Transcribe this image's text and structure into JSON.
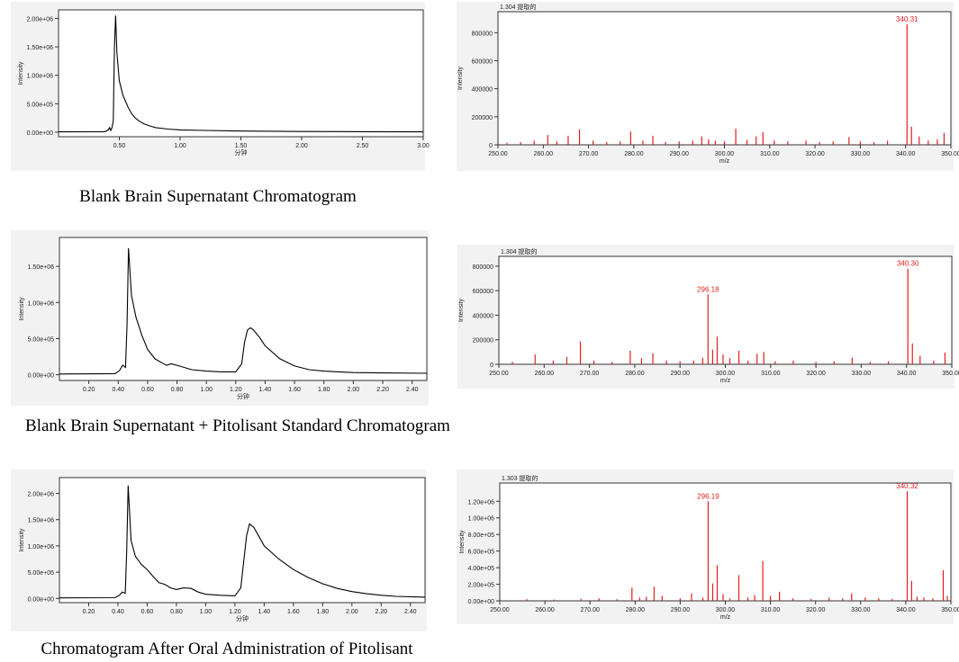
{
  "chart_data": [
    {
      "id": "chrom1",
      "type": "line",
      "title": "Blank Brain Supernatant Chromatogram",
      "xlabel": "分钟",
      "ylabel": "Intensity",
      "xlim": [
        0,
        3.0
      ],
      "ylim": [
        -80000,
        2150000
      ],
      "xticks": [
        0.5,
        1.0,
        1.5,
        2.0,
        2.5,
        3.0
      ],
      "xtick_labels": [
        "0.50",
        "1.00",
        "1.50",
        "2.00",
        "2.50",
        "3.00"
      ],
      "yticks": [
        0,
        500000,
        1000000,
        1500000,
        2000000
      ],
      "ytick_labels": [
        "0.00e+00",
        "5.00e+05",
        "1.00e+06",
        "1.50e+06",
        "2.00e+06"
      ],
      "grid": false,
      "color": "#000000",
      "x": [
        0,
        0.38,
        0.41,
        0.42,
        0.43,
        0.44,
        0.45,
        0.46,
        0.47,
        0.48,
        0.5,
        0.53,
        0.57,
        0.6,
        0.63,
        0.66,
        0.7,
        0.75,
        0.8,
        0.9,
        1.0,
        1.2,
        1.5,
        2.0,
        2.5,
        3.0
      ],
      "y": [
        5000,
        8000,
        40000,
        80000,
        30000,
        80000,
        200000,
        1500000,
        2050000,
        1400000,
        900000,
        650000,
        450000,
        330000,
        250000,
        200000,
        150000,
        110000,
        80000,
        55000,
        40000,
        30000,
        20000,
        12000,
        8000,
        5000
      ]
    },
    {
      "id": "ms1",
      "type": "bar",
      "header": "1.304 提取的",
      "xlabel": "m/z",
      "ylabel": "Intensity",
      "xlim": [
        250,
        350
      ],
      "ylim": [
        0,
        950000
      ],
      "xticks": [
        250,
        260,
        270,
        280,
        290,
        300,
        310,
        320,
        330,
        340,
        350
      ],
      "xtick_labels": [
        "250.00",
        "260.00",
        "270.00",
        "280.00",
        "290.00",
        "300.00",
        "310.00",
        "320.00",
        "330.00",
        "340.00",
        "350.00"
      ],
      "yticks": [
        0,
        200000,
        400000,
        600000,
        800000
      ],
      "ytick_labels": [
        "0",
        "200000",
        "400000",
        "600000",
        "800000"
      ],
      "color": "#e02020",
      "annotations": [
        {
          "x": 340.31,
          "label": "340.31"
        }
      ],
      "x": [
        252,
        255,
        258,
        261,
        263,
        265.5,
        268,
        271,
        274,
        277,
        279.3,
        282,
        284.2,
        287,
        290,
        293,
        295,
        296.5,
        298,
        300,
        302.5,
        305,
        307,
        308.5,
        311,
        314,
        318,
        321,
        324,
        327.5,
        330,
        333,
        336,
        340.31,
        341.3,
        343,
        345,
        347,
        348.5
      ],
      "y": [
        15000,
        20000,
        30000,
        70000,
        25000,
        65000,
        110000,
        30000,
        20000,
        25000,
        95000,
        30000,
        65000,
        20000,
        25000,
        30000,
        60000,
        40000,
        30000,
        25000,
        115000,
        35000,
        60000,
        90000,
        30000,
        25000,
        30000,
        20000,
        25000,
        55000,
        25000,
        20000,
        30000,
        860000,
        130000,
        60000,
        30000,
        40000,
        85000
      ]
    },
    {
      "id": "chrom2",
      "type": "line",
      "title": "Blank Brain Supernatant + Pitolisant Standard Chromatogram",
      "xlabel": "分钟",
      "ylabel": "Intensity",
      "xlim": [
        0,
        2.5
      ],
      "ylim": [
        -80000,
        1900000
      ],
      "xticks": [
        0.2,
        0.4,
        0.6,
        0.8,
        1.0,
        1.2,
        1.4,
        1.6,
        1.8,
        2.0,
        2.2,
        2.4
      ],
      "xtick_labels": [
        "0.20",
        "0.40",
        "0.60",
        "0.80",
        "1.00",
        "1.20",
        "1.40",
        "1.60",
        "1.80",
        "2.00",
        "2.20",
        "2.40"
      ],
      "yticks": [
        0,
        500000,
        1000000,
        1500000
      ],
      "ytick_labels": [
        "0.00e+00",
        "5.00e+05",
        "1.00e+06",
        "1.50e+06"
      ],
      "grid": false,
      "color": "#000000",
      "x": [
        0,
        0.38,
        0.41,
        0.43,
        0.45,
        0.46,
        0.47,
        0.49,
        0.52,
        0.56,
        0.6,
        0.65,
        0.7,
        0.73,
        0.76,
        0.8,
        0.9,
        1.0,
        1.1,
        1.2,
        1.24,
        1.26,
        1.28,
        1.3,
        1.32,
        1.36,
        1.4,
        1.5,
        1.6,
        1.7,
        1.8,
        1.9,
        2.0,
        2.2,
        2.5
      ],
      "y": [
        10000,
        15000,
        60000,
        130000,
        100000,
        700000,
        1750000,
        1100000,
        800000,
        550000,
        350000,
        220000,
        160000,
        130000,
        150000,
        130000,
        70000,
        50000,
        40000,
        40000,
        150000,
        450000,
        620000,
        650000,
        620000,
        520000,
        400000,
        220000,
        120000,
        70000,
        50000,
        40000,
        30000,
        25000,
        20000
      ]
    },
    {
      "id": "ms2",
      "type": "bar",
      "header": "1.304 提取的",
      "xlabel": "m/z",
      "ylabel": "Intensity",
      "xlim": [
        250,
        350
      ],
      "ylim": [
        0,
        880000
      ],
      "xticks": [
        250,
        260,
        270,
        280,
        290,
        300,
        310,
        320,
        330,
        340,
        350
      ],
      "xtick_labels": [
        "250.00",
        "260.00",
        "270.00",
        "280.00",
        "290.00",
        "300.00",
        "310.00",
        "320.00",
        "330.00",
        "340.00",
        "350.00"
      ],
      "yticks": [
        0,
        200000,
        400000,
        600000,
        800000
      ],
      "ytick_labels": [
        "0",
        "200000",
        "400000",
        "600000",
        "800000"
      ],
      "color": "#e02020",
      "annotations": [
        {
          "x": 296.18,
          "label": "296.18"
        },
        {
          "x": 340.3,
          "label": "340.30"
        }
      ],
      "x": [
        253,
        258,
        262,
        265,
        268,
        271,
        275,
        279,
        281.5,
        284,
        287,
        290,
        293,
        295,
        296.18,
        297.2,
        298.2,
        299.5,
        301,
        303,
        305,
        307,
        308.5,
        311,
        315,
        320,
        324,
        328,
        332,
        336,
        340.3,
        341.3,
        343,
        346,
        348.5
      ],
      "y": [
        20000,
        80000,
        30000,
        60000,
        185000,
        30000,
        20000,
        110000,
        50000,
        90000,
        30000,
        25000,
        30000,
        55000,
        570000,
        120000,
        225000,
        80000,
        50000,
        110000,
        30000,
        85000,
        100000,
        25000,
        30000,
        20000,
        25000,
        55000,
        20000,
        25000,
        780000,
        170000,
        70000,
        30000,
        95000
      ]
    },
    {
      "id": "chrom3",
      "type": "line",
      "title": "Chromatogram After Oral Administration of Pitolisant",
      "xlabel": "分钟",
      "ylabel": "Intensity",
      "xlim": [
        0,
        2.5
      ],
      "ylim": [
        -80000,
        2300000
      ],
      "xticks": [
        0.2,
        0.4,
        0.6,
        0.8,
        1.0,
        1.2,
        1.4,
        1.6,
        1.8,
        2.0,
        2.2,
        2.4
      ],
      "xtick_labels": [
        "0.20",
        "0.40",
        "0.60",
        "0.80",
        "1.00",
        "1.20",
        "1.40",
        "1.60",
        "1.80",
        "2.00",
        "2.20",
        "2.40"
      ],
      "yticks": [
        0,
        500000,
        1000000,
        1500000,
        2000000
      ],
      "ytick_labels": [
        "0.00e+00",
        "5.00e+05",
        "1.00e+06",
        "1.50e+06",
        "2.00e+06"
      ],
      "grid": false,
      "color": "#000000",
      "x": [
        0,
        0.38,
        0.41,
        0.43,
        0.45,
        0.46,
        0.47,
        0.49,
        0.52,
        0.56,
        0.6,
        0.64,
        0.68,
        0.72,
        0.76,
        0.8,
        0.85,
        0.9,
        0.95,
        1.0,
        1.1,
        1.2,
        1.24,
        1.26,
        1.28,
        1.3,
        1.33,
        1.36,
        1.4,
        1.5,
        1.6,
        1.7,
        1.8,
        1.9,
        2.0,
        2.1,
        2.2,
        2.3,
        2.5
      ],
      "y": [
        10000,
        15000,
        60000,
        120000,
        100000,
        900000,
        2150000,
        1100000,
        800000,
        650000,
        550000,
        420000,
        300000,
        270000,
        200000,
        170000,
        200000,
        190000,
        120000,
        80000,
        60000,
        50000,
        200000,
        700000,
        1200000,
        1420000,
        1350000,
        1200000,
        1000000,
        750000,
        550000,
        400000,
        280000,
        190000,
        130000,
        90000,
        60000,
        40000,
        25000
      ]
    },
    {
      "id": "ms3",
      "type": "bar",
      "header": "1.303 提取的",
      "xlabel": "m/z",
      "ylabel": "Intensity",
      "xlim": [
        250,
        350
      ],
      "ylim": [
        0,
        1420000
      ],
      "xticks": [
        250,
        260,
        270,
        280,
        290,
        300,
        310,
        320,
        330,
        340,
        350
      ],
      "xtick_labels": [
        "250.00",
        "260.00",
        "270.00",
        "280.00",
        "290.00",
        "300.00",
        "310.00",
        "320.00",
        "330.00",
        "340.00",
        "350.00"
      ],
      "yticks": [
        0,
        200000,
        400000,
        600000,
        800000,
        1000000,
        1200000
      ],
      "ytick_labels": [
        "0.00e+00",
        "2.00e+05",
        "4.00e+05",
        "6.00e+05",
        "8.00e+05",
        "1.00e+06",
        "1.20e+06"
      ],
      "color": "#e02020",
      "annotations": [
        {
          "x": 296.19,
          "label": "296.19"
        },
        {
          "x": 340.32,
          "label": "340.32"
        }
      ],
      "x": [
        256,
        262,
        268,
        272,
        276,
        279.3,
        281,
        282.5,
        284.2,
        286,
        290,
        292.5,
        295,
        296.19,
        297.2,
        298.2,
        299.5,
        301,
        303,
        305,
        306.5,
        308.3,
        310,
        312,
        315,
        319,
        323,
        326,
        328,
        331,
        334,
        337,
        340.32,
        341.3,
        342.5,
        344,
        346,
        348.3,
        349.2
      ],
      "y": [
        20000,
        15000,
        25000,
        30000,
        20000,
        160000,
        40000,
        50000,
        170000,
        60000,
        30000,
        90000,
        40000,
        1200000,
        210000,
        430000,
        80000,
        30000,
        310000,
        40000,
        70000,
        480000,
        60000,
        110000,
        30000,
        25000,
        40000,
        30000,
        90000,
        40000,
        30000,
        25000,
        1320000,
        240000,
        50000,
        40000,
        30000,
        370000,
        60000
      ]
    }
  ]
}
